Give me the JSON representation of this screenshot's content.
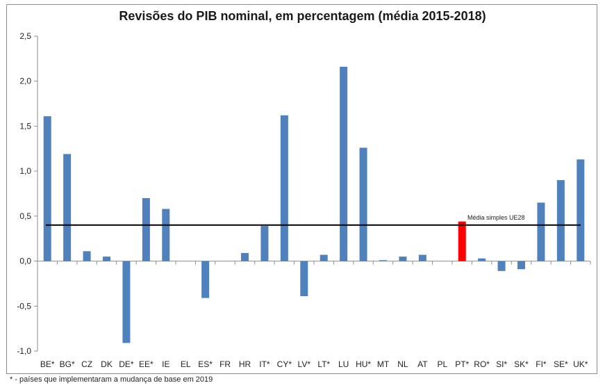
{
  "chart_data": {
    "type": "bar",
    "title": "Revisões do PIB nominal, em percentagem (média 2015-2018)",
    "xlabel": "",
    "ylabel": "",
    "ylim": [
      -1.0,
      2.5
    ],
    "yticks": [
      "2,5",
      "2,0",
      "1,5",
      "1,0",
      "0,5",
      "0,0",
      "-0,5",
      "-1,0"
    ],
    "ytick_values": [
      2.5,
      2.0,
      1.5,
      1.0,
      0.5,
      0.0,
      -0.5,
      -1.0
    ],
    "grid": false,
    "categories": [
      "BE*",
      "BG*",
      "CZ",
      "DK",
      "DE*",
      "EE*",
      "IE",
      "EL",
      "ES*",
      "FR",
      "HR",
      "IT*",
      "CY*",
      "LV*",
      "LT*",
      "LU",
      "HU*",
      "MT",
      "NL",
      "AT",
      "PL",
      "PT*",
      "RO*",
      "SI*",
      "SK*",
      "FI*",
      "SE*",
      "UK*"
    ],
    "values": [
      1.61,
      1.19,
      0.11,
      0.05,
      -0.91,
      0.7,
      0.58,
      0.0,
      -0.41,
      0.0,
      0.09,
      0.39,
      1.62,
      -0.39,
      0.07,
      2.16,
      1.26,
      0.01,
      0.05,
      0.07,
      0.0,
      0.44,
      0.03,
      -0.11,
      -0.09,
      0.65,
      0.9,
      1.13
    ],
    "highlight_category": "PT*",
    "colors": {
      "bar": "#4f81bd",
      "highlight": "#ff0000",
      "reference_line": "#000000"
    },
    "reference_line": {
      "value": 0.4,
      "label": "Média simples UE28"
    },
    "footnote": "* - países que implementaram a mudança de base em 2019"
  }
}
